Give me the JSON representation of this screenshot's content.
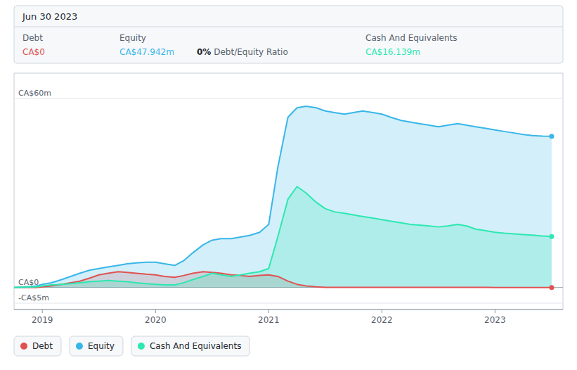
{
  "chart_data": {
    "type": "area",
    "x": [
      2018.75,
      2018.85,
      2018.95,
      2019.0,
      2019.08,
      2019.17,
      2019.25,
      2019.33,
      2019.42,
      2019.5,
      2019.58,
      2019.67,
      2019.75,
      2019.83,
      2019.92,
      2020.0,
      2020.08,
      2020.17,
      2020.25,
      2020.33,
      2020.42,
      2020.5,
      2020.58,
      2020.67,
      2020.75,
      2020.83,
      2020.92,
      2021.0,
      2021.08,
      2021.17,
      2021.25,
      2021.33,
      2021.42,
      2021.5,
      2021.58,
      2021.67,
      2021.75,
      2021.83,
      2021.92,
      2022.0,
      2022.08,
      2022.17,
      2022.25,
      2022.33,
      2022.42,
      2022.5,
      2022.58,
      2022.67,
      2022.75,
      2022.83,
      2022.92,
      2023.0,
      2023.08,
      2023.17,
      2023.25,
      2023.33,
      2023.42,
      2023.5
    ],
    "series": [
      {
        "name": "Debt",
        "color": "#e05252",
        "values": [
          0.0,
          0.0,
          0.0,
          0.2,
          0.5,
          1.0,
          1.5,
          2.0,
          3.0,
          4.0,
          4.5,
          5.0,
          4.8,
          4.5,
          4.2,
          4.0,
          3.5,
          3.2,
          3.8,
          4.5,
          5.0,
          4.8,
          4.5,
          4.0,
          3.8,
          3.5,
          3.8,
          4.0,
          3.5,
          2.0,
          1.0,
          0.5,
          0.2,
          0.05,
          0.02,
          0.01,
          0.01,
          0.01,
          0.01,
          0.01,
          0.01,
          0.01,
          0.01,
          0.01,
          0.01,
          0.01,
          0.01,
          0.01,
          0.01,
          0.01,
          0.01,
          0.0,
          0.0,
          0.0,
          0.0,
          0.0,
          0.0,
          0.0
        ]
      },
      {
        "name": "Equity",
        "color": "#38b6e8",
        "values": [
          0.0,
          0.2,
          0.5,
          1.0,
          1.5,
          2.5,
          3.5,
          4.5,
          5.5,
          6.0,
          6.5,
          7.0,
          7.5,
          7.8,
          8.0,
          8.0,
          7.5,
          7.0,
          8.5,
          11.0,
          13.5,
          15.0,
          15.5,
          15.5,
          16.0,
          16.5,
          17.5,
          20.0,
          38.0,
          54.0,
          57.0,
          57.5,
          57.0,
          56.0,
          55.5,
          55.0,
          55.5,
          56.0,
          55.5,
          55.0,
          54.0,
          53.0,
          52.5,
          52.0,
          51.5,
          51.0,
          51.5,
          52.0,
          51.5,
          51.0,
          50.5,
          50.0,
          49.5,
          49.0,
          48.5,
          48.2,
          48.0,
          47.942
        ]
      },
      {
        "name": "Cash And Equivalents",
        "color": "#2de8b0",
        "values": [
          0.0,
          0.1,
          0.2,
          0.5,
          0.8,
          1.0,
          1.2,
          1.5,
          1.8,
          2.0,
          2.2,
          2.0,
          1.8,
          1.5,
          1.2,
          1.0,
          0.8,
          0.8,
          1.5,
          2.5,
          3.5,
          4.5,
          4.0,
          3.5,
          4.0,
          4.5,
          5.0,
          6.0,
          16.0,
          28.0,
          32.0,
          30.0,
          27.0,
          25.0,
          24.0,
          23.5,
          23.0,
          22.5,
          22.0,
          21.5,
          21.0,
          20.5,
          20.0,
          19.8,
          19.5,
          19.2,
          19.5,
          20.0,
          19.5,
          18.5,
          18.0,
          17.5,
          17.2,
          17.0,
          16.8,
          16.6,
          16.3,
          16.139
        ]
      }
    ],
    "xlim": [
      2018.75,
      2023.6
    ],
    "xticks": [
      2019,
      2020,
      2021,
      2022,
      2023
    ],
    "ylim": [
      -7,
      68
    ],
    "yticks": [
      {
        "value": 60,
        "label": "CA$60m"
      },
      {
        "value": 0,
        "label": "CA$0"
      },
      {
        "value": -5,
        "label": "-CA$5m"
      }
    ],
    "grid": true,
    "legend": "bottom",
    "annotations": [
      "Jun 30 2023",
      "Debt",
      "CA$0",
      "Equity",
      "CA$47.942m",
      "0%",
      " Debt/Equity Ratio",
      "Cash And Equivalents",
      "CA$16.139m"
    ]
  }
}
